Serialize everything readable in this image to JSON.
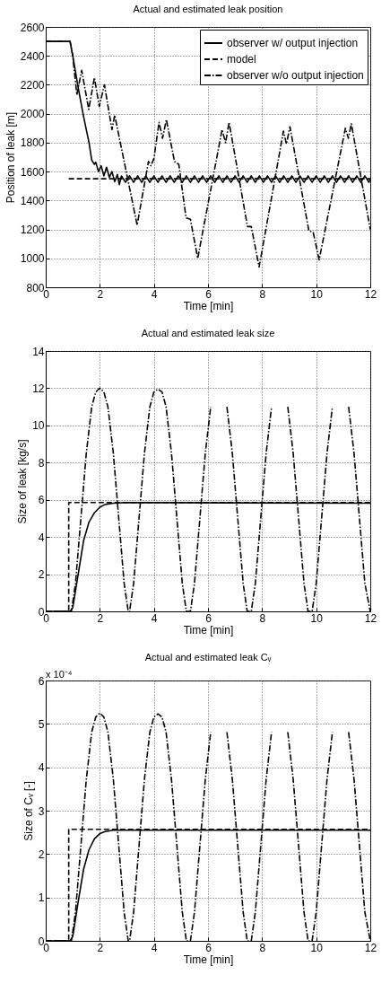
{
  "chart_data": [
    {
      "type": "line",
      "title": "Actual and estimated leak position",
      "xlabel": "Time [min]",
      "ylabel": "Position of leak [m]",
      "xlim": [
        0,
        12
      ],
      "xticks": [
        0,
        2,
        4,
        6,
        8,
        10,
        12
      ],
      "ylim": [
        800,
        2600
      ],
      "yticks": [
        800,
        1000,
        1200,
        1400,
        1600,
        1800,
        2000,
        2200,
        2400,
        2600
      ],
      "grid": true,
      "legend": "top right",
      "series": [
        {
          "name": "observer w/ output injection",
          "color": "#000000",
          "line_style": "solid",
          "x": [
            0,
            0.9,
            1.0,
            1.2,
            1.4,
            1.6,
            1.7,
            1.8,
            1.85,
            1.95,
            2.05,
            2.15,
            2.25,
            2.35,
            2.45,
            2.55,
            2.65,
            2.72,
            2.8,
            2.95,
            3.1,
            3.25,
            3.4,
            3.55,
            3.7,
            3.85,
            4.0,
            4.15,
            4.3,
            4.45,
            4.6,
            4.75,
            4.9,
            5.05,
            5.2,
            5.35,
            5.5,
            5.65,
            5.8,
            5.95,
            6.1,
            6.25,
            6.4,
            6.55,
            6.7,
            6.85,
            7.0,
            7.15,
            7.3,
            7.45,
            7.6,
            7.75,
            7.9,
            8.05,
            8.2,
            8.35,
            8.5,
            8.65,
            8.8,
            8.95,
            9.1,
            9.25,
            9.4,
            9.55,
            9.7,
            9.85,
            10.0,
            10.15,
            10.3,
            10.45,
            10.6,
            10.75,
            10.9,
            11.05,
            11.2,
            11.35,
            11.5,
            11.65,
            11.8,
            11.95,
            12
          ],
          "values": [
            2500,
            2500,
            2400,
            2180,
            1980,
            1800,
            1680,
            1650,
            1665,
            1600,
            1640,
            1570,
            1630,
            1560,
            1600,
            1530,
            1580,
            1510,
            1570,
            1525,
            1570,
            1525,
            1570,
            1525,
            1570,
            1525,
            1570,
            1525,
            1570,
            1525,
            1570,
            1525,
            1570,
            1525,
            1570,
            1525,
            1570,
            1525,
            1570,
            1525,
            1570,
            1525,
            1570,
            1525,
            1570,
            1525,
            1570,
            1525,
            1570,
            1525,
            1570,
            1525,
            1570,
            1525,
            1570,
            1525,
            1570,
            1525,
            1570,
            1525,
            1570,
            1525,
            1570,
            1525,
            1570,
            1525,
            1570,
            1525,
            1570,
            1525,
            1570,
            1525,
            1570,
            1525,
            1570,
            1525,
            1570,
            1525,
            1570,
            1525,
            1550
          ]
        },
        {
          "name": "model",
          "color": "#000000",
          "line_style": "dashed",
          "x": [
            0.85,
            12
          ],
          "values": [
            1550,
            1550
          ]
        },
        {
          "name": "observer w/o output injection",
          "color": "#000000",
          "line_style": "dashdot",
          "x": [
            0,
            0.9,
            1.0,
            1.15,
            1.33,
            1.59,
            1.8,
            1.98,
            2.17,
            2.45,
            2.55,
            3.38,
            3.8,
            3.89,
            4.0,
            4.19,
            4.32,
            4.46,
            4.76,
            4.92,
            5.19,
            5.35,
            5.62,
            6.52,
            6.65,
            6.78,
            7.14,
            7.46,
            7.6,
            7.89,
            8.79,
            8.9,
            9.03,
            9.73,
            9.89,
            10.11,
            11.08,
            11.19,
            11.3,
            12
          ],
          "values": [
            2500,
            2500,
            2400,
            2130,
            2300,
            2030,
            2250,
            2050,
            2200,
            1890,
            1990,
            1230,
            1670,
            1640,
            1690,
            1940,
            1830,
            1960,
            1670,
            1650,
            1280,
            1270,
            1000,
            1890,
            1800,
            1940,
            1560,
            1220,
            1220,
            940,
            1880,
            1790,
            1910,
            1190,
            1180,
            990,
            1900,
            1830,
            1930,
            1200
          ]
        }
      ]
    },
    {
      "type": "line",
      "title": "Actual and estimated leak size",
      "xlabel": "Time [min]",
      "ylabel": "Size of leak [kg/s]",
      "xlim": [
        0,
        12
      ],
      "xticks": [
        0,
        2,
        4,
        6,
        8,
        10,
        12
      ],
      "ylim": [
        0,
        14
      ],
      "yticks": [
        0,
        2,
        4,
        6,
        8,
        10,
        12,
        14
      ],
      "grid": true,
      "legend": "top right",
      "series": [
        {
          "name": "observer w/ output injection",
          "color": "#000000",
          "line_style": "solid",
          "x": [
            0,
            0.9,
            1.0,
            1.2,
            1.4,
            1.6,
            1.8,
            2.0,
            2.2,
            2.5,
            3.0,
            12
          ],
          "values": [
            0,
            0,
            0.2,
            2,
            3.8,
            4.8,
            5.3,
            5.6,
            5.75,
            5.82,
            5.85,
            5.82
          ]
        },
        {
          "name": "model",
          "color": "#000000",
          "line_style": "dashed",
          "x": [
            0,
            0.85,
            0.85,
            12
          ],
          "values": [
            0,
            0,
            5.85,
            5.85
          ]
        },
        {
          "name": "observer w/o output injection",
          "color": "#000000",
          "line_style": "dashdot",
          "x": [
            0,
            0.95,
            1.1,
            1.3,
            1.5,
            1.7,
            1.85,
            2.0,
            2.15,
            2.3,
            2.5,
            2.7,
            2.9,
            3.05,
            3.1,
            3.25,
            3.45,
            3.65,
            3.85,
            4.0,
            4.15,
            4.3,
            4.45,
            4.65,
            4.85,
            5.05,
            5.2,
            5.35,
            5.5,
            5.7,
            5.9,
            6.1,
            6.25,
            6.4,
            6.55,
            6.7,
            6.9,
            7.1,
            7.3,
            7.45,
            7.6,
            7.75,
            7.95,
            8.15,
            8.35,
            8.5,
            8.65,
            8.8,
            8.95,
            9.15,
            9.35,
            9.55,
            9.7,
            9.85,
            10.0,
            10.2,
            10.4,
            10.6,
            10.75,
            10.9,
            11.05,
            11.2,
            11.4,
            11.6,
            11.8,
            12
          ],
          "values": [
            0,
            0,
            1.5,
            5,
            8.5,
            11,
            11.8,
            12,
            11.8,
            11,
            8.5,
            5,
            1.5,
            0,
            0,
            1.5,
            5,
            8.5,
            11,
            11.8,
            11.95,
            11.8,
            11,
            8.5,
            5,
            1.5,
            0,
            0,
            1.5,
            5,
            8.5,
            11,
            null,
            null,
            null,
            11,
            8.5,
            5,
            1.5,
            0,
            0,
            1.5,
            5,
            8.5,
            11,
            null,
            null,
            null,
            11,
            8.5,
            5,
            1.5,
            0,
            0,
            1.5,
            5,
            8.5,
            11,
            null,
            null,
            null,
            11,
            8.5,
            5,
            1.5,
            0
          ]
        }
      ]
    },
    {
      "type": "line",
      "title": "Actual and estimated leak Cᵥ",
      "xlabel": "Time [min]",
      "ylabel": "Size of Cᵥ [-]",
      "annotations": [
        "x 10⁻⁴"
      ],
      "xlim": [
        0,
        12
      ],
      "xticks": [
        0,
        2,
        4,
        6,
        8,
        10,
        12
      ],
      "ylim": [
        0,
        6
      ],
      "yticks": [
        0,
        1,
        2,
        3,
        4,
        5,
        6
      ],
      "grid": true,
      "legend": "top right",
      "series": [
        {
          "name": "observer w/ output injection",
          "color": "#000000",
          "line_style": "solid",
          "x": [
            0,
            0.9,
            1.0,
            1.2,
            1.4,
            1.6,
            1.8,
            2.0,
            2.2,
            2.5,
            12
          ],
          "values": [
            0,
            0,
            0.1,
            0.9,
            1.65,
            2.1,
            2.35,
            2.47,
            2.52,
            2.55,
            2.55
          ]
        },
        {
          "name": "model",
          "color": "#000000",
          "line_style": "dashed",
          "x": [
            0,
            0.85,
            0.85,
            12
          ],
          "values": [
            0,
            0,
            2.57,
            2.57
          ]
        },
        {
          "name": "observer w/o output injection",
          "color": "#000000",
          "line_style": "dashdot",
          "x": [
            0,
            0.95,
            1.1,
            1.3,
            1.5,
            1.7,
            1.85,
            2.0,
            2.15,
            2.3,
            2.5,
            2.7,
            2.9,
            3.05,
            3.1,
            3.25,
            3.45,
            3.65,
            3.85,
            4.0,
            4.15,
            4.3,
            4.45,
            4.65,
            4.85,
            5.05,
            5.2,
            5.35,
            5.5,
            5.7,
            5.9,
            6.1,
            6.25,
            6.4,
            6.55,
            6.7,
            6.9,
            7.1,
            7.3,
            7.45,
            7.6,
            7.75,
            7.95,
            8.15,
            8.35,
            8.5,
            8.65,
            8.8,
            8.95,
            9.15,
            9.35,
            9.55,
            9.7,
            9.85,
            10.0,
            10.2,
            10.4,
            10.6,
            10.75,
            10.9,
            11.05,
            11.2,
            11.4,
            11.6,
            11.8,
            12
          ],
          "values": [
            0,
            0,
            0.66,
            2.19,
            3.72,
            4.81,
            5.16,
            5.25,
            5.16,
            4.81,
            3.72,
            2.19,
            0.66,
            0,
            0,
            0.66,
            2.19,
            3.72,
            4.81,
            5.16,
            5.23,
            5.16,
            4.81,
            3.72,
            2.19,
            0.66,
            0,
            0,
            0.66,
            2.19,
            3.72,
            4.81,
            null,
            null,
            null,
            4.81,
            3.72,
            2.19,
            0.66,
            0,
            0,
            0.66,
            2.19,
            3.72,
            4.81,
            null,
            null,
            null,
            4.81,
            3.72,
            2.19,
            0.66,
            0,
            0,
            0.66,
            2.19,
            3.72,
            4.81,
            null,
            null,
            null,
            4.81,
            3.72,
            2.19,
            0.66,
            0
          ]
        }
      ]
    }
  ]
}
